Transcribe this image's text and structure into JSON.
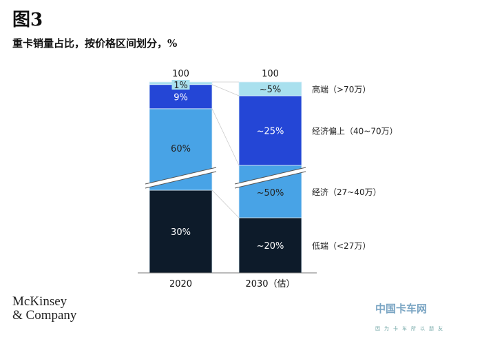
{
  "figure_label": "图3",
  "subtitle": "重卡销量占比，按价格区间划分，%",
  "logo": {
    "line1": "McKinsey",
    "line2": "& Company"
  },
  "watermark": {
    "name": "中国卡车网",
    "line2": "因为卡车所以朋友"
  },
  "chart_data": {
    "type": "stacked-bar",
    "title": "重卡销量占比，按价格区间划分，%",
    "categories": [
      "2020",
      "2030（估）"
    ],
    "totals": [
      "100",
      "100"
    ],
    "axis_break": true,
    "series": [
      {
        "name": "低端（<27万）",
        "values": [
          30,
          20
        ],
        "labels": [
          "30%",
          "~20%"
        ],
        "color": "#0d1b2a"
      },
      {
        "name": "经济（27~40万）",
        "values": [
          60,
          50
        ],
        "labels": [
          "60%",
          "~50%"
        ],
        "color": "#48a3e6"
      },
      {
        "name": "经济偏上（40~70万）",
        "values": [
          9,
          25
        ],
        "labels": [
          "9%",
          "~25%"
        ],
        "color": "#2446d6"
      },
      {
        "name": "高端（>70万）",
        "values": [
          1,
          5
        ],
        "labels": [
          "1%",
          "~5%"
        ],
        "color": "#a9e0ee"
      }
    ]
  }
}
